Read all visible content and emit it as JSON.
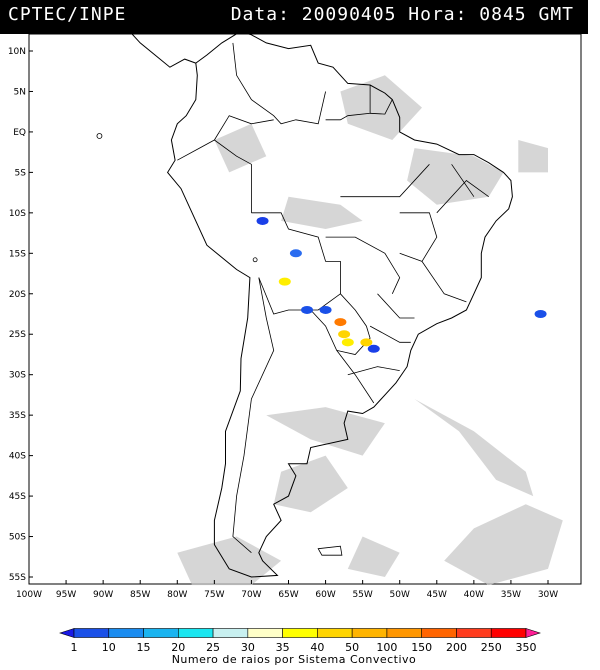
{
  "header": {
    "left": "CPTEC/INPE",
    "right": "Data: 20090405 Hora: 0845 GMT"
  },
  "map": {
    "lat_ticks": [
      "10N",
      "5N",
      "EQ",
      "5S",
      "10S",
      "15S",
      "20S",
      "25S",
      "30S",
      "35S",
      "40S",
      "45S",
      "50S",
      "55S"
    ],
    "lat_values": [
      10,
      5,
      0,
      -5,
      -10,
      -15,
      -20,
      -25,
      -30,
      -35,
      -40,
      -45,
      -50,
      -55
    ],
    "lon_ticks": [
      "100W",
      "95W",
      "90W",
      "85W",
      "80W",
      "75W",
      "70W",
      "65W",
      "60W",
      "55W",
      "50W",
      "45W",
      "40W",
      "35W",
      "30W"
    ],
    "lon_values": [
      -100,
      -95,
      -90,
      -85,
      -80,
      -75,
      -70,
      -65,
      -60,
      -55,
      -50,
      -45,
      -40,
      -35,
      -30
    ],
    "lon_range": [
      -100,
      -27.5
    ],
    "lat_range": [
      -56,
      13
    ],
    "background": "#ffffff",
    "coast_color": "#000000",
    "cloud_color": "#c8c8c8",
    "lightning_clusters": [
      {
        "lon": -68.5,
        "lat": -11.0,
        "color": "#1a3fe8",
        "class": "1"
      },
      {
        "lon": -64.0,
        "lat": -15.0,
        "color": "#2a6cf0",
        "class": "10"
      },
      {
        "lon": -65.5,
        "lat": -18.5,
        "color": "#ffee00",
        "class": "35"
      },
      {
        "lon": -62.5,
        "lat": -22.0,
        "color": "#1a50e8",
        "class": "1"
      },
      {
        "lon": -60.0,
        "lat": -22.0,
        "color": "#1a50e8",
        "class": "1"
      },
      {
        "lon": -58.0,
        "lat": -23.5,
        "color": "#ff7a00",
        "class": "150"
      },
      {
        "lon": -57.5,
        "lat": -25.0,
        "color": "#ffd400",
        "class": "40"
      },
      {
        "lon": -57.0,
        "lat": -26.0,
        "color": "#ffee00",
        "class": "35"
      },
      {
        "lon": -54.5,
        "lat": -26.0,
        "color": "#ffd400",
        "class": "40"
      },
      {
        "lon": -53.5,
        "lat": -26.8,
        "color": "#1a3fe8",
        "class": "1"
      },
      {
        "lon": -31.0,
        "lat": -22.5,
        "color": "#1a50e8",
        "class": "1"
      }
    ]
  },
  "colorbar": {
    "labels": [
      "1",
      "10",
      "15",
      "20",
      "25",
      "30",
      "35",
      "40",
      "50",
      "100",
      "150",
      "200",
      "250",
      "350"
    ],
    "colors": [
      "#1a1ae6",
      "#1a50e8",
      "#1a8cf0",
      "#1ab4f0",
      "#1ae6f0",
      "#c8f0f0",
      "#ffffc8",
      "#ffff00",
      "#ffd400",
      "#ffb400",
      "#ff9600",
      "#ff6400",
      "#ff3c1e",
      "#ff0000",
      "#ff1e96"
    ],
    "caption": "Numero de raios por Sistema Convectivo"
  }
}
